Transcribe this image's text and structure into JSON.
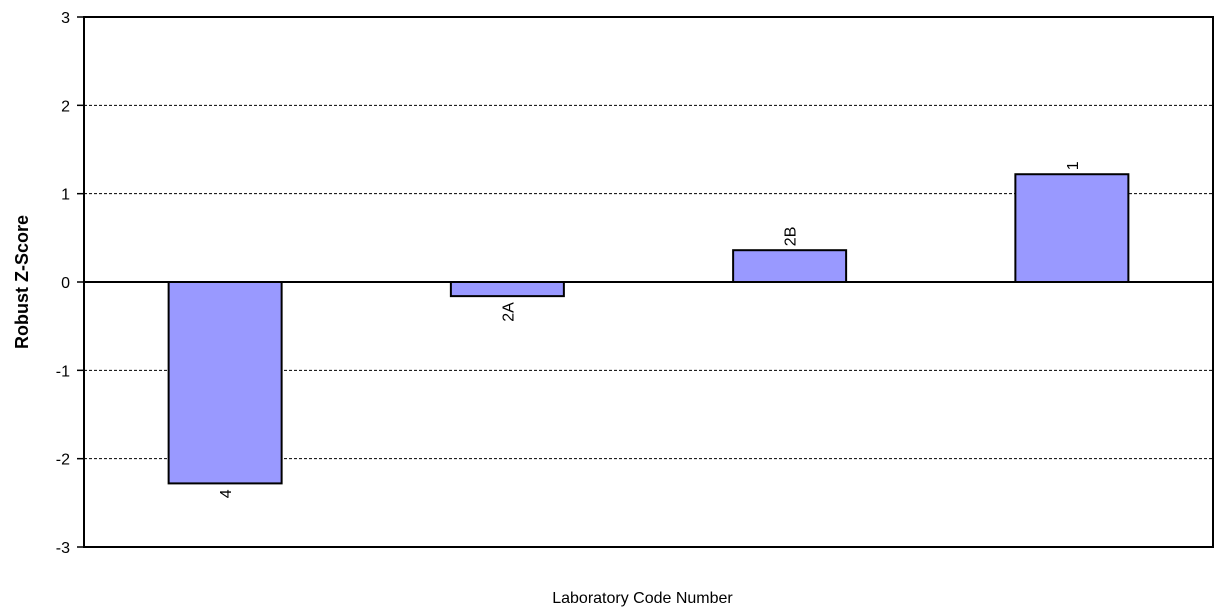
{
  "chart_data": {
    "type": "bar",
    "title": "",
    "xlabel": "Laboratory Code Number",
    "ylabel": "Robust Z-Score",
    "ylim": [
      -3,
      3
    ],
    "yticks": [
      "3",
      "2",
      "1",
      "0",
      "-1",
      "-2",
      "-3"
    ],
    "ytick_values": [
      3,
      2,
      1,
      0,
      -1,
      -2,
      -3
    ],
    "categories": [
      "4",
      "2A",
      "2B",
      "1"
    ],
    "values": [
      -2.28,
      -0.16,
      0.36,
      1.22
    ],
    "grid": "horizontal dashed",
    "bar_color": "#9999FF",
    "bar_edge_color": "#000000",
    "data_labels": "category code, rotated, at bar end",
    "legend": "none"
  }
}
